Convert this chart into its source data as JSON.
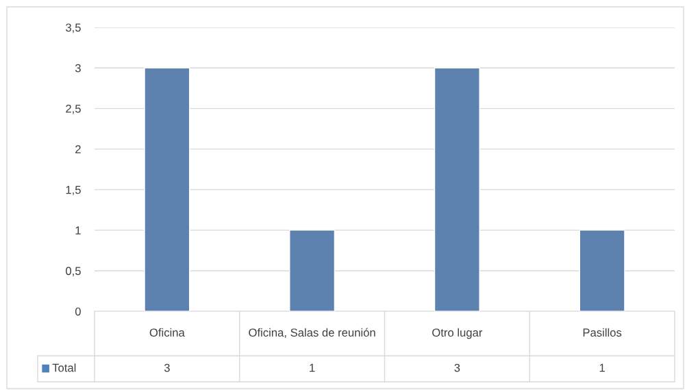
{
  "chart_data": {
    "type": "bar",
    "categories": [
      "Oficina",
      "Oficina, Salas de reunión",
      "Otro lugar",
      "Pasillos"
    ],
    "series": [
      {
        "name": "Total",
        "color": "#4f81bd",
        "values": [
          3,
          1,
          3,
          1
        ]
      }
    ],
    "ylim": [
      0,
      3.5
    ],
    "yticks": [
      0,
      {
        "value": 0.5,
        "label": "0,5"
      },
      1,
      {
        "value": 1.5,
        "label": "1,5"
      },
      2,
      {
        "value": 2.5,
        "label": "2,5"
      },
      3,
      {
        "value": 3.5,
        "label": "3,5"
      }
    ],
    "grid": "y",
    "legend": "bottom",
    "data_labels": true
  }
}
